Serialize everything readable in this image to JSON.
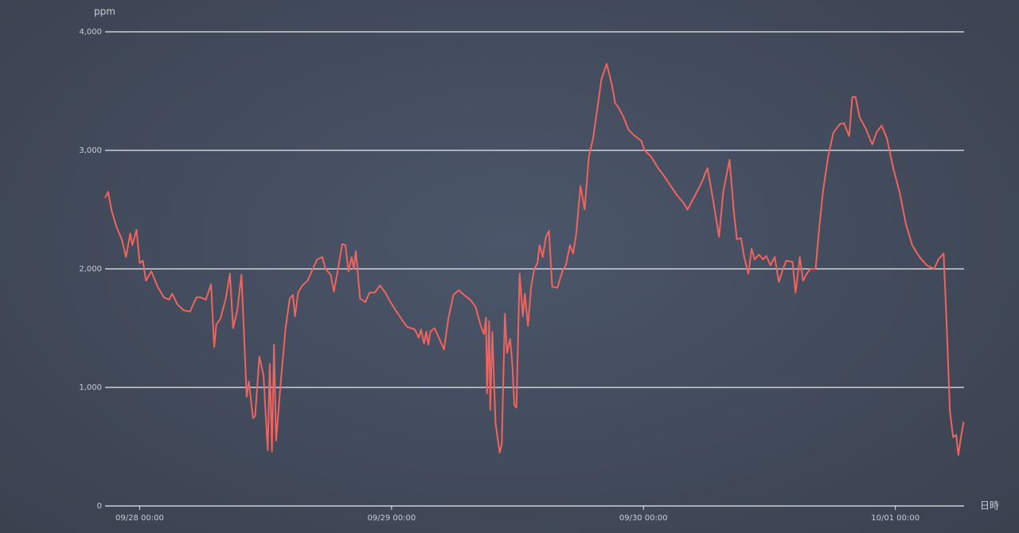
{
  "chart_data": {
    "type": "line",
    "ylabel": "ppm",
    "xlabel": "日時",
    "color": "#f0645f",
    "grid": true,
    "xlim": [
      -3.6,
      78.7
    ],
    "ylim": [
      0,
      4000
    ],
    "xticks": [
      {
        "value": 0,
        "label": "09/28 00:00"
      },
      {
        "value": 24,
        "label": "09/29 00:00"
      },
      {
        "value": 48,
        "label": "09/30 00:00"
      },
      {
        "value": 72,
        "label": "10/01 00:00"
      }
    ],
    "yticks": [
      0,
      {
        "value": 1000,
        "label": "1,000"
      },
      {
        "value": 2000,
        "label": "2,000"
      },
      {
        "value": 3000,
        "label": "3,000"
      },
      {
        "value": 4000,
        "label": "4,000"
      }
    ],
    "x": [
      -3.3,
      -3.0,
      -2.7,
      -2.2,
      -1.7,
      -1.3,
      -0.9,
      -0.7,
      -0.3,
      0,
      0.3,
      0.6,
      1.1,
      1.7,
      2.3,
      2.8,
      3.1,
      3.6,
      4.2,
      4.8,
      5.4,
      5.8,
      6.3,
      6.8,
      7.1,
      7.3,
      7.7,
      8.2,
      8.6,
      8.9,
      9.3,
      9.7,
      10.2,
      10.4,
      10.8,
      11.0,
      11.4,
      11.8,
      12.2,
      12.4,
      12.6,
      12.8,
      13.0,
      13.4,
      13.9,
      14.3,
      14.6,
      14.8,
      15.1,
      15.5,
      16.0,
      16.5,
      16.9,
      17.4,
      17.7,
      18.2,
      18.5,
      18.9,
      19.3,
      19.6,
      19.9,
      20.2,
      20.4,
      20.6,
      21.0,
      21.5,
      21.9,
      22.4,
      22.9,
      23.4,
      23.9,
      24.4,
      25.0,
      25.5,
      26.2,
      26.6,
      26.8,
      27.1,
      27.3,
      27.5,
      27.7,
      28.1,
      28.6,
      29.0,
      29.4,
      29.9,
      30.4,
      30.9,
      31.5,
      32.0,
      32.5,
      32.8,
      33.0,
      33.1,
      33.3,
      33.4,
      33.6,
      33.9,
      34.3,
      34.5,
      34.8,
      35.0,
      35.3,
      35.5,
      35.7,
      35.9,
      36.2,
      36.5,
      36.7,
      37.0,
      37.3,
      37.6,
      37.9,
      38.1,
      38.4,
      38.7,
      39.0,
      39.3,
      39.8,
      40.3,
      40.6,
      41.0,
      41.3,
      41.6,
      42.0,
      42.4,
      42.8,
      43.2,
      43.6,
      44.0,
      44.5,
      45.0,
      45.3,
      45.7,
      46.1,
      46.6,
      47.2,
      47.8,
      48.1,
      48.7,
      49.4,
      50.0,
      50.6,
      51.2,
      51.8,
      52.2,
      52.8,
      53.5,
      54.1,
      54.6,
      55.2,
      55.6,
      56.2,
      56.6,
      56.9,
      57.3,
      57.6,
      58.0,
      58.3,
      58.6,
      59.0,
      59.4,
      59.7,
      60.1,
      60.5,
      60.9,
      61.3,
      61.6,
      62.2,
      62.5,
      62.9,
      63.2,
      63.5,
      63.9,
      64.4,
      64.7,
      65.1,
      65.6,
      66.1,
      66.7,
      67.1,
      67.6,
      67.9,
      68.2,
      68.6,
      69.2,
      69.8,
      70.2,
      70.7,
      71.2,
      71.8,
      72.4,
      73.0,
      73.6,
      74.3,
      75.0,
      75.7,
      76.1,
      76.6,
      76.9,
      77.2,
      77.5,
      77.8,
      78.0,
      78.2,
      78.5
    ],
    "values": [
      2600,
      2650,
      2500,
      2350,
      2250,
      2100,
      2300,
      2200,
      2330,
      2050,
      2070,
      1900,
      1980,
      1850,
      1760,
      1740,
      1790,
      1700,
      1650,
      1640,
      1760,
      1760,
      1740,
      1870,
      1340,
      1530,
      1580,
      1750,
      1960,
      1500,
      1650,
      1950,
      920,
      1050,
      740,
      760,
      1260,
      1100,
      470,
      1200,
      460,
      1360,
      550,
      1000,
      1500,
      1750,
      1780,
      1600,
      1800,
      1860,
      1900,
      2000,
      2080,
      2100,
      2000,
      1950,
      1810,
      2000,
      2210,
      2200,
      1980,
      2100,
      2000,
      2150,
      1750,
      1720,
      1800,
      1800,
      1860,
      1800,
      1720,
      1650,
      1570,
      1510,
      1490,
      1420,
      1490,
      1370,
      1470,
      1360,
      1470,
      1500,
      1400,
      1320,
      1580,
      1780,
      1820,
      1780,
      1740,
      1680,
      1520,
      1450,
      1590,
      950,
      1560,
      810,
      1470,
      700,
      450,
      520,
      1620,
      1290,
      1410,
      1200,
      850,
      830,
      1960,
      1600,
      1790,
      1520,
      1850,
      2000,
      2050,
      2200,
      2100,
      2270,
      2320,
      1850,
      1840,
      1990,
      2030,
      2200,
      2130,
      2300,
      2700,
      2500,
      2950,
      3100,
      3350,
      3600,
      3730,
      3550,
      3400,
      3350,
      3280,
      3170,
      3120,
      3080,
      3000,
      2950,
      2850,
      2780,
      2700,
      2620,
      2560,
      2500,
      2600,
      2720,
      2850,
      2600,
      2270,
      2650,
      2920,
      2500,
      2250,
      2260,
      2100,
      1960,
      2170,
      2080,
      2120,
      2080,
      2110,
      2030,
      2100,
      1890,
      2000,
      2070,
      2060,
      1800,
      2100,
      1900,
      1950,
      2000,
      2000,
      2300,
      2650,
      2950,
      3150,
      3220,
      3230,
      3120,
      3450,
      3450,
      3280,
      3180,
      3050,
      3150,
      3210,
      3100,
      2850,
      2650,
      2380,
      2200,
      2100,
      2030,
      2000,
      2080,
      2130,
      1500,
      800,
      580,
      600,
      430,
      550,
      710
    ]
  }
}
